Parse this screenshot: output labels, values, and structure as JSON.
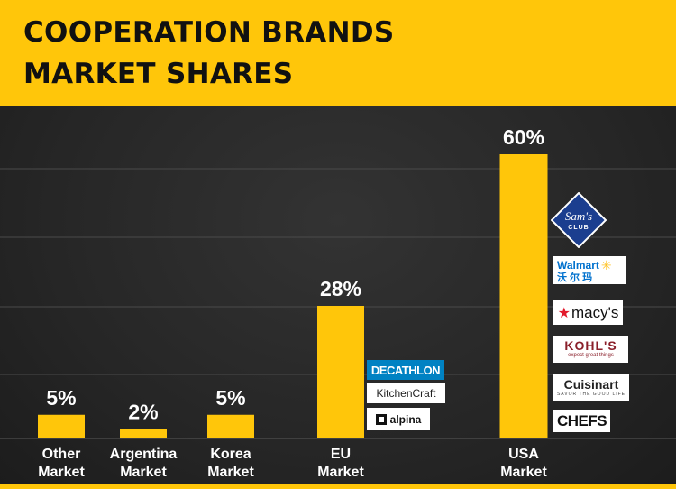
{
  "title_lines": [
    "COOPERATION BRANDS",
    "MARKET SHARES"
  ],
  "colors": {
    "accent": "#ffc60a",
    "background": "#262626",
    "text": "#ffffff"
  },
  "chart_data": {
    "type": "bar",
    "categories": [
      [
        "Other",
        "Market"
      ],
      [
        "Argentina",
        "Market"
      ],
      [
        "Korea",
        "Market"
      ],
      [
        "EU",
        "Market"
      ],
      [
        "USA",
        "Market"
      ]
    ],
    "values": [
      5,
      2,
      5,
      28,
      60
    ],
    "value_labels": [
      "5%",
      "2%",
      "5%",
      "28%",
      "60%"
    ],
    "ylim": [
      0,
      70
    ],
    "grid": true,
    "logos": {
      "eu": [
        "DECATHLON",
        "KitchenCraft",
        "alpina"
      ],
      "usa": {
        "sams": [
          "Sam's",
          "CLUB"
        ],
        "walmart": [
          "Walmart",
          "沃 尔 玛"
        ],
        "macys": "macy's",
        "kohls": [
          "KOHL'S",
          "expect great things"
        ],
        "cuisinart": [
          "Cuisinart",
          "SAVOR THE GOOD LIFE"
        ],
        "chefs": "CHEFS"
      }
    }
  }
}
